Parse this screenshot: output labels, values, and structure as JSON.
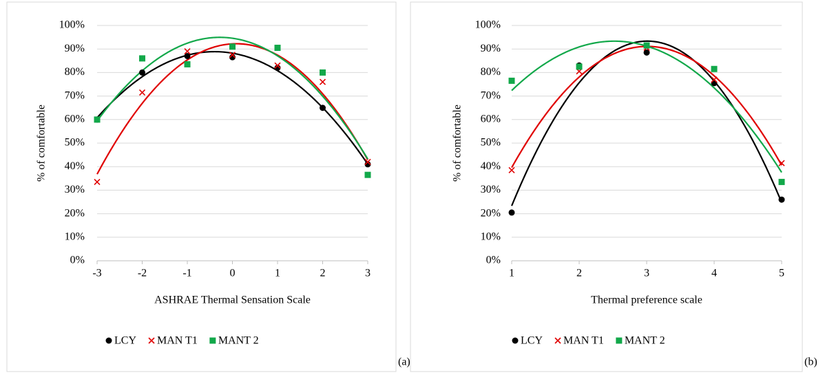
{
  "chart_data": [
    {
      "type": "scatter",
      "panel_label": "(a)",
      "xlabel": "ASHRAE Thermal Sensation Scale",
      "ylabel": "% of comfortable",
      "x": [
        -3,
        -2,
        -1,
        0,
        1,
        2,
        3
      ],
      "xlim": [
        -3,
        3
      ],
      "xticks": [
        -3,
        -2,
        -1,
        0,
        1,
        2,
        3
      ],
      "ylim": [
        0,
        100
      ],
      "yticks": [
        {
          "value": 0,
          "label": "0%"
        },
        {
          "value": 10,
          "label": "10%"
        },
        {
          "value": 20,
          "label": "20%"
        },
        {
          "value": 30,
          "label": "30%"
        },
        {
          "value": 40,
          "label": "40%"
        },
        {
          "value": 50,
          "label": "50%"
        },
        {
          "value": 60,
          "label": "60%"
        },
        {
          "value": 70,
          "label": "70%"
        },
        {
          "value": 80,
          "label": "80%"
        },
        {
          "value": 90,
          "label": "90%"
        },
        {
          "value": 100,
          "label": "100%"
        }
      ],
      "grid": true,
      "legend": "bottom",
      "trendline": "polynomial",
      "series": [
        {
          "name": "LCY",
          "color": "#000000",
          "marker": "circle",
          "values": [
            60,
            80,
            87,
            86.5,
            82,
            65,
            41
          ]
        },
        {
          "name": "MAN T1",
          "color": "#e00000",
          "marker": "x",
          "values": [
            33.5,
            71.5,
            89,
            87.5,
            83,
            76,
            42
          ]
        },
        {
          "name": "MANT 2",
          "color": "#12a84a",
          "marker": "square",
          "values": [
            60,
            86,
            83.5,
            91,
            90.5,
            80,
            36.5
          ]
        }
      ]
    },
    {
      "type": "scatter",
      "panel_label": "(b)",
      "xlabel": "Thermal preference scale",
      "ylabel": "% of comfortable",
      "x": [
        1,
        2,
        3,
        4,
        5
      ],
      "xlim": [
        1,
        5
      ],
      "xticks": [
        1,
        2,
        3,
        4,
        5
      ],
      "ylim": [
        0,
        100
      ],
      "yticks": [
        {
          "value": 0,
          "label": "0%"
        },
        {
          "value": 10,
          "label": "10%"
        },
        {
          "value": 20,
          "label": "20%"
        },
        {
          "value": 30,
          "label": "30%"
        },
        {
          "value": 40,
          "label": "40%"
        },
        {
          "value": 50,
          "label": "50%"
        },
        {
          "value": 60,
          "label": "60%"
        },
        {
          "value": 70,
          "label": "70%"
        },
        {
          "value": 80,
          "label": "80%"
        },
        {
          "value": 90,
          "label": "90%"
        },
        {
          "value": 100,
          "label": "100%"
        }
      ],
      "grid": true,
      "legend": "bottom",
      "trendline": "polynomial",
      "series": [
        {
          "name": "LCY",
          "color": "#000000",
          "marker": "circle",
          "values": [
            20.5,
            83,
            88.5,
            75.5,
            26
          ]
        },
        {
          "name": "MAN T1",
          "color": "#e00000",
          "marker": "x",
          "values": [
            38.5,
            80.5,
            90.5,
            77,
            41.5
          ]
        },
        {
          "name": "MANT 2",
          "color": "#12a84a",
          "marker": "square",
          "values": [
            76.5,
            82.5,
            91.5,
            81.5,
            33.5
          ]
        }
      ]
    }
  ]
}
